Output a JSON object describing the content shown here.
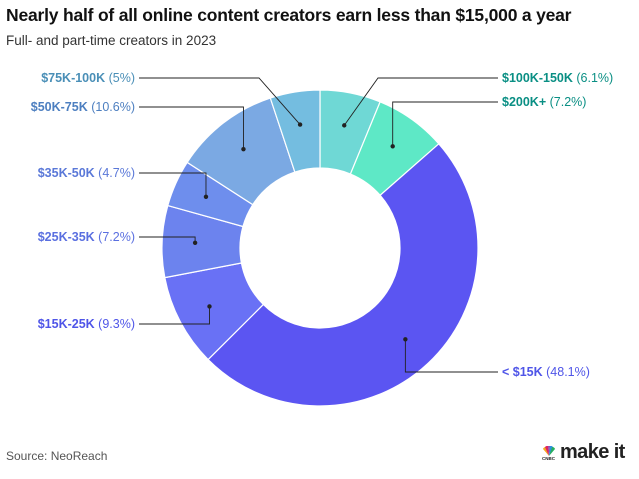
{
  "title": "Nearly half of all online content creators earn less than $15,000 a year",
  "subtitle": "Full- and part-time creators in 2023",
  "source": "Source: NeoReach",
  "logo": {
    "brand_text": "make it",
    "network_text": "CNBC"
  },
  "chart_data": {
    "type": "pie",
    "variant": "donut",
    "categories": [
      "$100K-150K",
      "$200K+",
      "< $15K",
      "$15K-25K",
      "$25K-35K",
      "$35K-50K",
      "$50K-75K",
      "$75K-100K"
    ],
    "values": [
      6.1,
      7.2,
      48.1,
      9.3,
      7.2,
      4.7,
      10.6,
      5
    ],
    "value_labels": [
      "(6.1%)",
      "(7.2%)",
      "(48.1%)",
      "(9.3%)",
      "(7.2%)",
      "(4.7%)",
      "(10.6%)",
      "(5%)"
    ],
    "colors": [
      "#6fd8d5",
      "#5ee8c6",
      "#5b55f2",
      "#6971f5",
      "#6c83ee",
      "#6e8eed",
      "#7ba9e3",
      "#74bde0"
    ],
    "label_colors": [
      "#0a8f84",
      "#0a8f84",
      "#4f55e8",
      "#4f55e8",
      "#5a6fe0",
      "#5a78d8",
      "#4d7fc0",
      "#4a8fb7"
    ],
    "unit": "%"
  }
}
